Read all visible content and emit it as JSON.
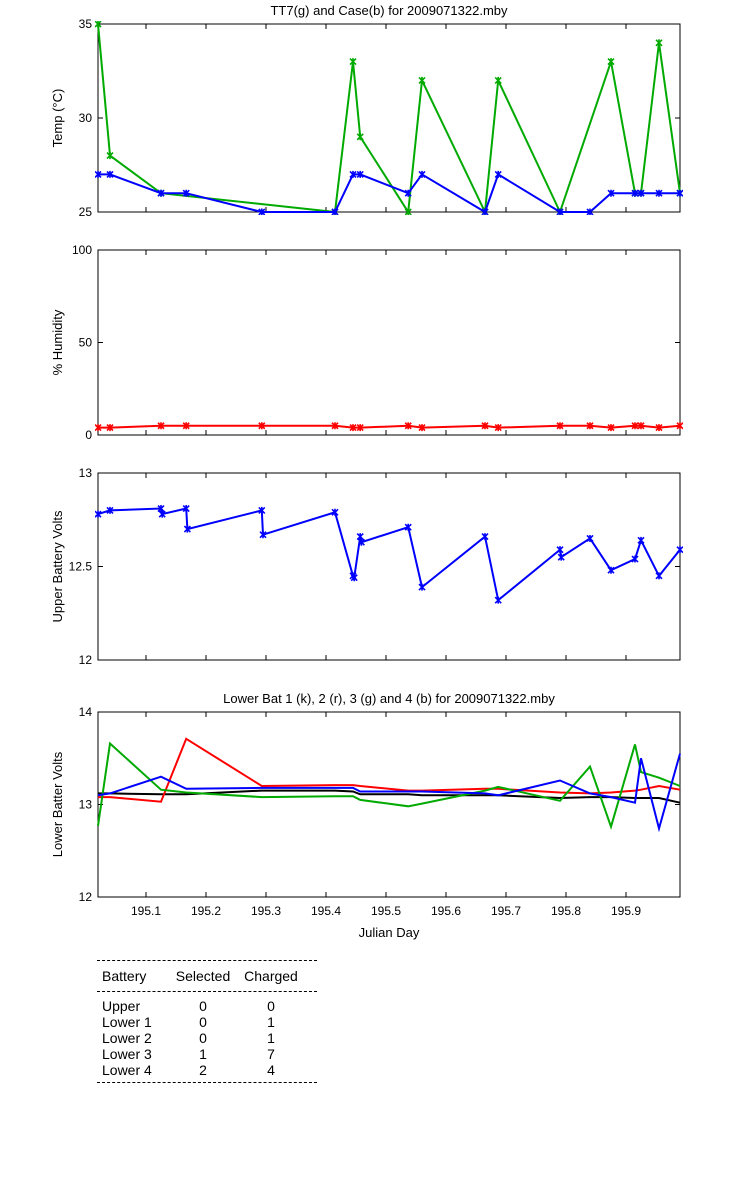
{
  "chart_data": [
    {
      "type": "line",
      "title": "TT7(g) and Case(b) for 2009071322.mby",
      "xlabel": "",
      "ylabel": "Temp  (°C)",
      "xlim": [
        195.02,
        195.99
      ],
      "ylim": [
        25,
        35
      ],
      "yticks": [
        25,
        30,
        35
      ],
      "xticks": [
        195.1,
        195.2,
        195.3,
        195.4,
        195.5,
        195.6,
        195.7,
        195.8,
        195.9
      ],
      "show_xtick_labels": false,
      "markers": true,
      "grid": false,
      "series": [
        {
          "color": "#00aa00",
          "x": [
            195.02,
            195.04,
            195.125,
            195.415,
            195.445,
            195.457,
            195.537,
            195.56,
            195.665,
            195.687,
            195.79,
            195.875,
            195.915,
            195.925,
            195.955,
            195.99
          ],
          "y": [
            35,
            28,
            26,
            25,
            33,
            29,
            25,
            32,
            25,
            32,
            25,
            33,
            26,
            26,
            34,
            26
          ]
        },
        {
          "color": "#0000ff",
          "x": [
            195.02,
            195.04,
            195.125,
            195.167,
            195.293,
            195.415,
            195.445,
            195.457,
            195.537,
            195.56,
            195.665,
            195.687,
            195.79,
            195.84,
            195.875,
            195.915,
            195.925,
            195.955,
            195.99
          ],
          "y": [
            27,
            27,
            26,
            26,
            25,
            25,
            27,
            27,
            26,
            27,
            25,
            27,
            25,
            25,
            26,
            26,
            26,
            26,
            26
          ]
        }
      ]
    },
    {
      "type": "line",
      "title": "",
      "xlabel": "",
      "ylabel": "% Humidity",
      "xlim": [
        195.02,
        195.99
      ],
      "ylim": [
        0,
        100
      ],
      "yticks": [
        0,
        50,
        100
      ],
      "xticks": [
        195.1,
        195.2,
        195.3,
        195.4,
        195.5,
        195.6,
        195.7,
        195.8,
        195.9
      ],
      "show_xtick_labels": false,
      "markers": true,
      "grid": false,
      "series": [
        {
          "color": "#ff0000",
          "x": [
            195.02,
            195.04,
            195.125,
            195.167,
            195.293,
            195.415,
            195.445,
            195.457,
            195.537,
            195.56,
            195.665,
            195.687,
            195.79,
            195.84,
            195.875,
            195.915,
            195.925,
            195.955,
            195.99
          ],
          "y": [
            4,
            4,
            5,
            5,
            5,
            5,
            4,
            4,
            5,
            4,
            5,
            4,
            5,
            5,
            4,
            5,
            5,
            4,
            5
          ]
        }
      ]
    },
    {
      "type": "line",
      "title": "",
      "xlabel": "",
      "ylabel": "Upper Battery Volts",
      "xlim": [
        195.02,
        195.99
      ],
      "ylim": [
        12,
        13
      ],
      "yticks": [
        12,
        12.5,
        13
      ],
      "xticks": [
        195.1,
        195.2,
        195.3,
        195.4,
        195.5,
        195.6,
        195.7,
        195.8,
        195.9
      ],
      "show_xtick_labels": false,
      "markers": true,
      "grid": false,
      "series": [
        {
          "color": "#0000ff",
          "x": [
            195.02,
            195.04,
            195.125,
            195.127,
            195.167,
            195.169,
            195.293,
            195.295,
            195.415,
            195.445,
            195.447,
            195.457,
            195.459,
            195.537,
            195.56,
            195.665,
            195.687,
            195.79,
            195.792,
            195.84,
            195.875,
            195.915,
            195.925,
            195.955,
            195.99
          ],
          "y": [
            12.78,
            12.8,
            12.81,
            12.78,
            12.81,
            12.7,
            12.8,
            12.67,
            12.79,
            12.45,
            12.44,
            12.66,
            12.63,
            12.71,
            12.39,
            12.66,
            12.32,
            12.59,
            12.55,
            12.65,
            12.48,
            12.54,
            12.64,
            12.45,
            12.59
          ]
        }
      ]
    },
    {
      "type": "line",
      "title": "Lower Bat 1 (k), 2 (r), 3 (g) and 4 (b) for 2009071322.mby",
      "xlabel": "Julian Day",
      "ylabel": "Lower Batter Volts",
      "xlim": [
        195.02,
        195.99
      ],
      "ylim": [
        12,
        14
      ],
      "yticks": [
        12,
        13,
        14
      ],
      "xticks": [
        195.1,
        195.2,
        195.3,
        195.4,
        195.5,
        195.6,
        195.7,
        195.8,
        195.9
      ],
      "show_xtick_labels": true,
      "markers": false,
      "grid": false,
      "series": [
        {
          "color": "#000000",
          "x": [
            195.02,
            195.04,
            195.125,
            195.167,
            195.293,
            195.415,
            195.445,
            195.457,
            195.537,
            195.56,
            195.665,
            195.687,
            195.79,
            195.84,
            195.875,
            195.915,
            195.925,
            195.955,
            195.99
          ],
          "y": [
            13.12,
            13.12,
            13.11,
            13.11,
            13.15,
            13.15,
            13.14,
            13.11,
            13.11,
            13.1,
            13.1,
            13.1,
            13.07,
            13.08,
            13.08,
            13.07,
            13.07,
            13.07,
            13.02
          ]
        },
        {
          "color": "#ff0000",
          "x": [
            195.02,
            195.04,
            195.125,
            195.167,
            195.293,
            195.415,
            195.445,
            195.457,
            195.537,
            195.56,
            195.665,
            195.687,
            195.79,
            195.84,
            195.875,
            195.915,
            195.925,
            195.955,
            195.99
          ],
          "y": [
            13.08,
            13.08,
            13.03,
            13.71,
            13.2,
            13.21,
            13.21,
            13.2,
            13.15,
            13.15,
            13.17,
            13.17,
            13.13,
            13.12,
            13.13,
            13.15,
            13.16,
            13.2,
            13.16
          ]
        },
        {
          "color": "#00aa00",
          "x": [
            195.02,
            195.04,
            195.125,
            195.167,
            195.293,
            195.415,
            195.445,
            195.457,
            195.537,
            195.56,
            195.665,
            195.687,
            195.79,
            195.84,
            195.875,
            195.915,
            195.925,
            195.955,
            195.99
          ],
          "y": [
            12.77,
            13.66,
            13.16,
            13.13,
            13.08,
            13.09,
            13.09,
            13.05,
            12.98,
            13.01,
            13.15,
            13.19,
            13.04,
            13.41,
            12.76,
            13.65,
            13.35,
            13.29,
            13.2
          ]
        },
        {
          "color": "#0000ff",
          "x": [
            195.02,
            195.04,
            195.125,
            195.167,
            195.293,
            195.415,
            195.445,
            195.457,
            195.537,
            195.56,
            195.665,
            195.687,
            195.79,
            195.84,
            195.875,
            195.915,
            195.925,
            195.955,
            195.99
          ],
          "y": [
            13.1,
            13.12,
            13.3,
            13.17,
            13.18,
            13.18,
            13.18,
            13.14,
            13.14,
            13.14,
            13.12,
            13.1,
            13.26,
            13.12,
            13.08,
            13.02,
            13.5,
            12.74,
            13.55
          ]
        }
      ]
    }
  ],
  "summary_table": {
    "headers": [
      "Battery",
      "Selected",
      "Charged"
    ],
    "rows": [
      {
        "battery": "Upper",
        "selected": "0",
        "charged": "0"
      },
      {
        "battery": "Lower 1",
        "selected": "0",
        "charged": "1"
      },
      {
        "battery": "Lower 2",
        "selected": "0",
        "charged": "1"
      },
      {
        "battery": "Lower 3",
        "selected": "1",
        "charged": "7"
      },
      {
        "battery": "Lower 4",
        "selected": "2",
        "charged": "4"
      }
    ]
  }
}
